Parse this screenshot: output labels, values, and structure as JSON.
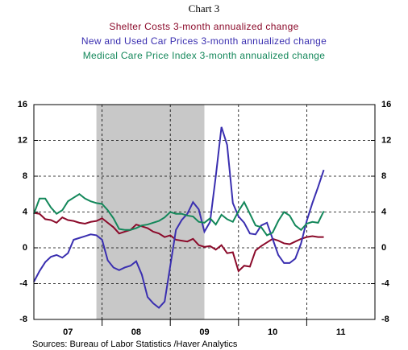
{
  "chart_data": {
    "type": "line",
    "title": "Chart 3",
    "source": "Sources:  Bureau of Labor Statistics /Haver Analytics",
    "x": [
      2007,
      2007.083,
      2007.167,
      2007.25,
      2007.333,
      2007.417,
      2007.5,
      2007.583,
      2007.667,
      2007.75,
      2007.833,
      2007.917,
      2008,
      2008.083,
      2008.167,
      2008.25,
      2008.333,
      2008.417,
      2008.5,
      2008.583,
      2008.667,
      2008.75,
      2008.833,
      2008.917,
      2009,
      2009.083,
      2009.167,
      2009.25,
      2009.333,
      2009.417,
      2009.5,
      2009.583,
      2009.667,
      2009.75,
      2009.833,
      2009.917,
      2010,
      2010.083,
      2010.167,
      2010.25,
      2010.333,
      2010.417,
      2010.5,
      2010.583,
      2010.667,
      2010.75,
      2010.833,
      2010.917,
      2011,
      2011.083,
      2011.167,
      2011.25
    ],
    "series": [
      {
        "name": "Shelter Costs   3-month annualized change",
        "color": "#8b0a2a",
        "values": [
          3.9,
          3.8,
          3.2,
          3.1,
          2.8,
          3.4,
          3.1,
          3.0,
          2.8,
          2.7,
          2.9,
          3.0,
          3.3,
          2.8,
          2.3,
          1.6,
          1.8,
          2.0,
          2.6,
          2.4,
          2.2,
          1.8,
          1.6,
          1.2,
          1.4,
          0.9,
          0.8,
          0.7,
          1.0,
          0.3,
          0.1,
          0.2,
          -0.2,
          0.3,
          -0.6,
          -0.5,
          -2.6,
          -2.0,
          -2.1,
          -0.3,
          0.2,
          0.6,
          1.0,
          0.8,
          0.5,
          0.4,
          0.7,
          1.0,
          1.2,
          1.3,
          1.2,
          1.2
        ]
      },
      {
        "name": "New and Used Car Prices 3-month annualized change",
        "color": "#3a2fb0",
        "values": [
          -3.8,
          -2.6,
          -1.6,
          -1.0,
          -0.8,
          -1.1,
          -0.6,
          0.9,
          1.1,
          1.3,
          1.5,
          1.4,
          0.9,
          -1.4,
          -2.2,
          -2.5,
          -2.2,
          -2.0,
          -1.5,
          -3.0,
          -5.5,
          -6.2,
          -6.7,
          -6.0,
          -2.0,
          2.0,
          3.1,
          3.8,
          5.1,
          4.3,
          1.8,
          2.9,
          8.0,
          13.5,
          11.5,
          5.0,
          3.5,
          2.8,
          1.6,
          1.5,
          2.5,
          2.8,
          1.0,
          -0.8,
          -1.7,
          -1.7,
          -1.2,
          0.5,
          3.0,
          5.0,
          6.8,
          8.7
        ]
      },
      {
        "name": "Medical Care Price Index    3-month annualized change",
        "color": "#13875a",
        "values": [
          3.8,
          5.5,
          5.5,
          4.5,
          3.8,
          4.2,
          5.2,
          5.6,
          6.0,
          5.5,
          5.2,
          5.0,
          4.9,
          4.2,
          3.3,
          2.1,
          2.0,
          2.0,
          2.2,
          2.5,
          2.6,
          2.8,
          3.0,
          3.4,
          4.0,
          3.8,
          3.8,
          3.6,
          3.5,
          2.9,
          2.8,
          3.3,
          2.6,
          3.7,
          3.2,
          2.9,
          4.1,
          5.1,
          3.8,
          2.5,
          2.3,
          1.4,
          1.7,
          3.0,
          4.0,
          3.6,
          2.5,
          2.0,
          2.7,
          2.9,
          2.8,
          4.1
        ]
      }
    ],
    "recession": {
      "start": 2007.917,
      "end": 2009.5,
      "color": "#c8c8c8"
    },
    "xlim": [
      2007,
      2012
    ],
    "xticks": [
      {
        "value": 2007.5,
        "label": "07"
      },
      {
        "value": 2008.5,
        "label": "08"
      },
      {
        "value": 2009.5,
        "label": "09"
      },
      {
        "value": 2010.5,
        "label": "10"
      },
      {
        "value": 2011.5,
        "label": "11"
      }
    ],
    "xgrid": [
      2008,
      2009,
      2010,
      2011
    ],
    "ylim": [
      -8,
      16
    ],
    "yticks": [
      -8,
      -4,
      0,
      4,
      8,
      12,
      16
    ],
    "grid": true
  }
}
